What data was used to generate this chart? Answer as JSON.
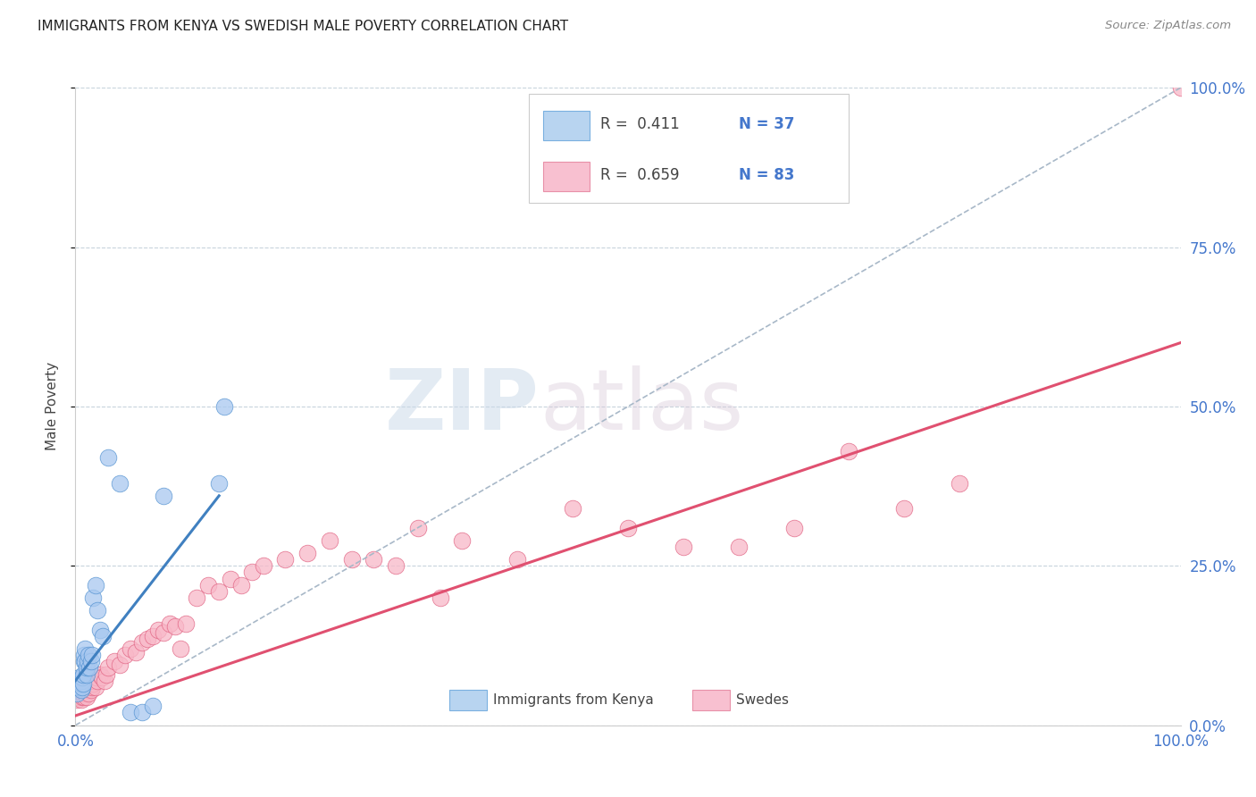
{
  "title": "IMMIGRANTS FROM KENYA VS SWEDISH MALE POVERTY CORRELATION CHART",
  "source": "Source: ZipAtlas.com",
  "ylabel": "Male Poverty",
  "ylabel_right_labels": [
    "0.0%",
    "25.0%",
    "50.0%",
    "75.0%",
    "100.0%"
  ],
  "ylabel_right_values": [
    0.0,
    0.25,
    0.5,
    0.75,
    1.0
  ],
  "watermark_zip": "ZIP",
  "watermark_atlas": "atlas",
  "legend_r1": "R =  0.411",
  "legend_n1": "N = 37",
  "legend_r2": "R =  0.659",
  "legend_n2": "N = 83",
  "legend_label1": "Immigrants from Kenya",
  "legend_label2": "Swedes",
  "color_blue_fill": "#a8c8f0",
  "color_blue_edge": "#5090d0",
  "color_pink_fill": "#f8b8c8",
  "color_pink_edge": "#e06080",
  "color_blue_line": "#4080c0",
  "color_pink_line": "#e05070",
  "color_dashed": "#a8b8c8",
  "blue_x": [
    0.001,
    0.002,
    0.003,
    0.003,
    0.004,
    0.004,
    0.005,
    0.005,
    0.005,
    0.006,
    0.006,
    0.007,
    0.007,
    0.008,
    0.008,
    0.009,
    0.009,
    0.01,
    0.01,
    0.011,
    0.012,
    0.013,
    0.014,
    0.015,
    0.016,
    0.018,
    0.02,
    0.022,
    0.025,
    0.03,
    0.04,
    0.05,
    0.06,
    0.07,
    0.08,
    0.13,
    0.135
  ],
  "blue_y": [
    0.05,
    0.06,
    0.065,
    0.07,
    0.06,
    0.075,
    0.055,
    0.065,
    0.07,
    0.06,
    0.075,
    0.065,
    0.08,
    0.1,
    0.11,
    0.1,
    0.12,
    0.08,
    0.09,
    0.1,
    0.11,
    0.09,
    0.1,
    0.11,
    0.2,
    0.22,
    0.18,
    0.15,
    0.14,
    0.42,
    0.38,
    0.02,
    0.02,
    0.03,
    0.36,
    0.38,
    0.5
  ],
  "pink_x": [
    0.001,
    0.002,
    0.002,
    0.003,
    0.003,
    0.004,
    0.004,
    0.005,
    0.005,
    0.005,
    0.006,
    0.006,
    0.007,
    0.007,
    0.007,
    0.008,
    0.008,
    0.008,
    0.009,
    0.009,
    0.01,
    0.01,
    0.01,
    0.011,
    0.011,
    0.012,
    0.012,
    0.013,
    0.013,
    0.014,
    0.014,
    0.015,
    0.015,
    0.016,
    0.017,
    0.018,
    0.019,
    0.02,
    0.022,
    0.024,
    0.026,
    0.028,
    0.03,
    0.035,
    0.04,
    0.045,
    0.05,
    0.055,
    0.06,
    0.065,
    0.07,
    0.075,
    0.08,
    0.085,
    0.09,
    0.095,
    0.1,
    0.11,
    0.12,
    0.13,
    0.14,
    0.15,
    0.16,
    0.17,
    0.19,
    0.21,
    0.23,
    0.25,
    0.27,
    0.29,
    0.31,
    0.33,
    0.35,
    0.4,
    0.45,
    0.5,
    0.55,
    0.6,
    0.65,
    0.7,
    0.75,
    0.8,
    1.0
  ],
  "pink_y": [
    0.04,
    0.05,
    0.06,
    0.045,
    0.06,
    0.055,
    0.07,
    0.04,
    0.055,
    0.07,
    0.045,
    0.06,
    0.05,
    0.055,
    0.065,
    0.045,
    0.06,
    0.075,
    0.05,
    0.065,
    0.045,
    0.06,
    0.075,
    0.055,
    0.07,
    0.05,
    0.065,
    0.06,
    0.07,
    0.055,
    0.07,
    0.06,
    0.075,
    0.065,
    0.07,
    0.06,
    0.075,
    0.07,
    0.08,
    0.075,
    0.07,
    0.08,
    0.09,
    0.1,
    0.095,
    0.11,
    0.12,
    0.115,
    0.13,
    0.135,
    0.14,
    0.15,
    0.145,
    0.16,
    0.155,
    0.12,
    0.16,
    0.2,
    0.22,
    0.21,
    0.23,
    0.22,
    0.24,
    0.25,
    0.26,
    0.27,
    0.29,
    0.26,
    0.26,
    0.25,
    0.31,
    0.2,
    0.29,
    0.26,
    0.34,
    0.31,
    0.28,
    0.28,
    0.31,
    0.43,
    0.34,
    0.38,
    1.0
  ],
  "blue_regline": [
    0.0,
    0.13,
    0.07,
    0.36
  ],
  "pink_regline_x": [
    0.0,
    1.0
  ],
  "pink_regline_y": [
    0.015,
    0.6
  ],
  "xlim": [
    0.0,
    1.0
  ],
  "ylim": [
    0.0,
    1.0
  ],
  "background_color": "#ffffff",
  "grid_color": "#c8d4dc",
  "grid_yticks": [
    0.0,
    0.25,
    0.5,
    0.75,
    1.0
  ]
}
